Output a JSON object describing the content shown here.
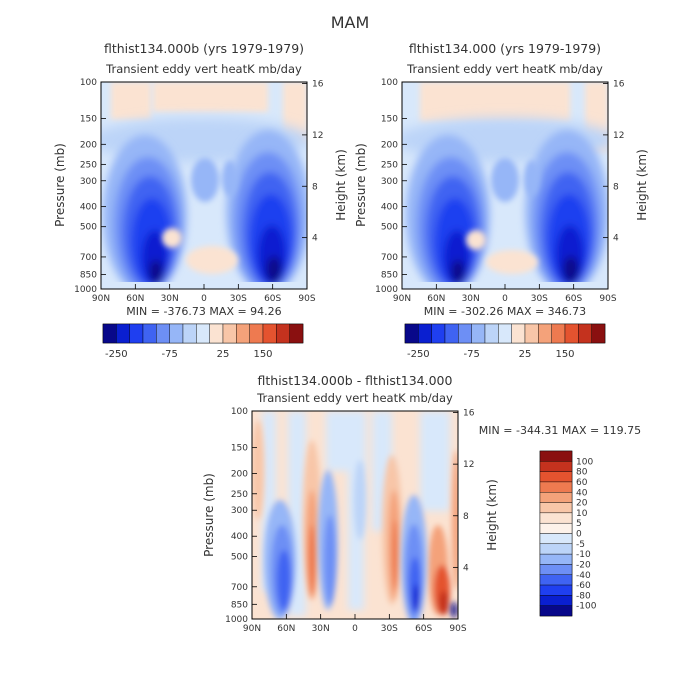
{
  "page_title": "MAM",
  "colors": {
    "neg_scale": [
      "#08088a",
      "#0a1fd0",
      "#1f3ff0",
      "#3f63f2",
      "#6d8ff5",
      "#96b6f7",
      "#bcd4f8",
      "#d8e8fb"
    ],
    "pos_scale": [
      "#fbe3d2",
      "#f8c6a8",
      "#f4a27a",
      "#ee7a50",
      "#e4532f",
      "#c4321e",
      "#8a1010"
    ]
  },
  "chart_data": [
    {
      "type": "heatmap",
      "id": "top-left",
      "title": "flthist134.000b (yrs 1979-1979)",
      "subtitle": "Transient eddy vert heatK mb/day",
      "ylabel": "Pressure (mb)",
      "y2label": "Height (km)",
      "x_ticks": [
        "90N",
        "60N",
        "30N",
        "0",
        "30S",
        "60S",
        "90S"
      ],
      "y_ticks": [
        "100",
        "150",
        "200",
        "250",
        "300",
        "400",
        "500",
        "700",
        "850",
        "1000"
      ],
      "y2_ticks": [
        "16",
        "12",
        "8",
        "4"
      ],
      "stats": "MIN = -376.73   MAX = 94.26",
      "colorbar_labels": [
        "-250",
        "-75",
        "25",
        "150"
      ]
    },
    {
      "type": "heatmap",
      "id": "top-right",
      "title": "flthist134.000 (yrs 1979-1979)",
      "subtitle": "Transient eddy vert heatK mb/day",
      "ylabel": "Pressure (mb)",
      "y2label": "Height (km)",
      "x_ticks": [
        "90N",
        "60N",
        "30N",
        "0",
        "30S",
        "60S",
        "90S"
      ],
      "y_ticks": [
        "100",
        "150",
        "200",
        "250",
        "300",
        "400",
        "500",
        "700",
        "850",
        "1000"
      ],
      "y2_ticks": [
        "16",
        "12",
        "8",
        "4"
      ],
      "stats": "MIN = -302.26   MAX = 346.73",
      "colorbar_labels": [
        "-250",
        "-75",
        "25",
        "150"
      ]
    },
    {
      "type": "heatmap",
      "id": "bottom-diff",
      "title": "flthist134.000b - flthist134.000",
      "subtitle": "Transient eddy vert heatK mb/day",
      "ylabel": "Pressure (mb)",
      "y2label": "Height (km)",
      "x_ticks": [
        "90N",
        "60N",
        "30N",
        "0",
        "30S",
        "60S",
        "90S"
      ],
      "y_ticks": [
        "100",
        "150",
        "200",
        "250",
        "300",
        "400",
        "500",
        "700",
        "850",
        "1000"
      ],
      "y2_ticks": [
        "16",
        "12",
        "8",
        "4"
      ],
      "stats": "MIN = -344.31   MAX = 119.75",
      "colorbar_labels": [
        "100",
        "80",
        "60",
        "40",
        "20",
        "10",
        "5",
        "0",
        "-5",
        "-10",
        "-20",
        "-40",
        "-60",
        "-80",
        "-100"
      ]
    }
  ]
}
